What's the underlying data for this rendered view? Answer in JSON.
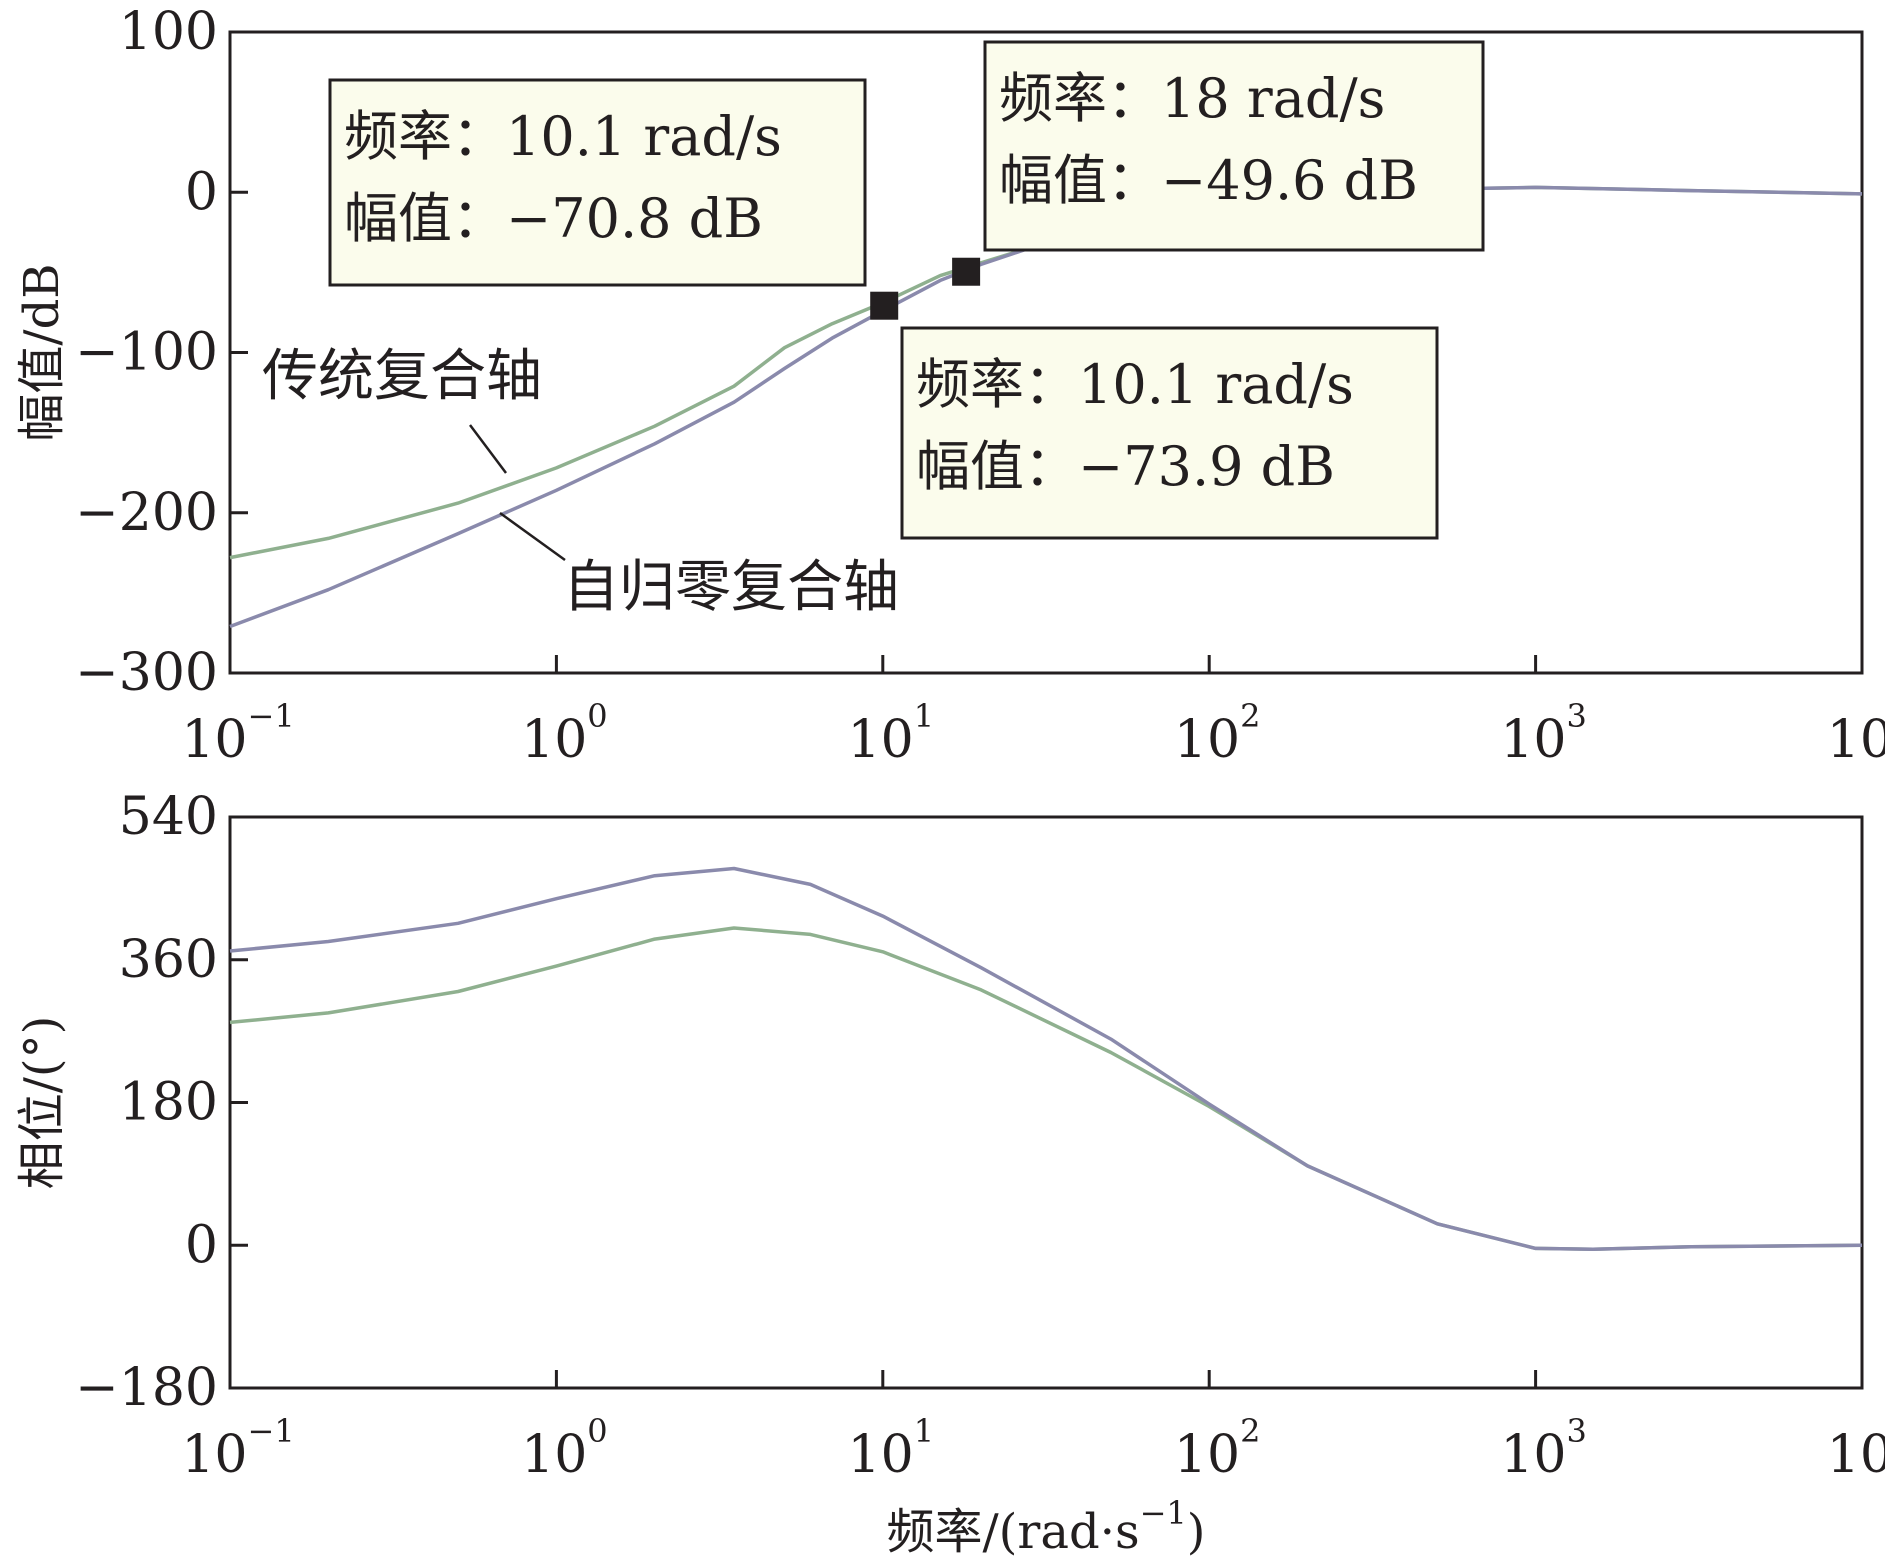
{
  "chart_data": [
    {
      "type": "line",
      "panel": "magnitude",
      "ylabel": "幅值/dB",
      "xscale": "log",
      "xlim": [
        0.1,
        10000
      ],
      "ylim": [
        -300,
        100
      ],
      "yticks": [
        100,
        0,
        -100,
        -200,
        -300
      ],
      "ytick_labels": [
        "100",
        "0",
        "−100",
        "−200",
        "−300"
      ],
      "xtick_labels": [
        {
          "base": "10",
          "exp": "−1"
        },
        {
          "base": "10",
          "exp": "0"
        },
        {
          "base": "10",
          "exp": "1"
        },
        {
          "base": "10",
          "exp": "2"
        },
        {
          "base": "10",
          "exp": "3"
        },
        {
          "base": "10",
          "exp": "4"
        }
      ],
      "series": [
        {
          "name": "传统复合轴",
          "color": "#8fb08f",
          "x": [
            0.1,
            0.2,
            0.5,
            1,
            2,
            3.5,
            5,
            7,
            10,
            15,
            20,
            30,
            50,
            100,
            200,
            500,
            1000,
            3000,
            10000
          ],
          "y": [
            -228,
            -216,
            -194,
            -172,
            -146,
            -121,
            -97,
            -82,
            -69,
            -52,
            -44,
            -33,
            -22,
            -11,
            -4,
            2,
            3,
            1,
            -1
          ]
        },
        {
          "name": "自归零复合轴",
          "color": "#8a8aac",
          "x": [
            0.1,
            0.2,
            0.5,
            1,
            2,
            3.5,
            5,
            7,
            10,
            15,
            20,
            30,
            50,
            100,
            200,
            500,
            1000,
            3000,
            10000
          ],
          "y": [
            -271,
            -248,
            -213,
            -186,
            -157,
            -131,
            -110,
            -91,
            -74,
            -55,
            -45,
            -33,
            -22,
            -11,
            -4,
            2,
            3,
            1,
            -1
          ]
        }
      ],
      "annotations": [
        {
          "line1": "频率：10.1 rad/s",
          "line2": "幅值：−70.8 dB",
          "x": 10.1,
          "y": -70.8
        },
        {
          "line1": "频率：18 rad/s",
          "line2": "幅值：−49.6 dB",
          "x": 18,
          "y": -49.6
        },
        {
          "line1": "频率：10.1 rad/s",
          "line2": "幅值：−73.9 dB",
          "x": 10.1,
          "y": -73.9
        }
      ]
    },
    {
      "type": "line",
      "panel": "phase",
      "xlabel": "频率/(rad·s",
      "xlabel_exp": "−1",
      "xlabel_close": ")",
      "ylabel": "相位/(°)",
      "xscale": "log",
      "xlim": [
        0.1,
        10000
      ],
      "ylim": [
        -180,
        540
      ],
      "yticks": [
        540,
        360,
        180,
        0,
        -180
      ],
      "ytick_labels": [
        "540",
        "360",
        "180",
        "0",
        "−180"
      ],
      "xtick_labels": [
        {
          "base": "10",
          "exp": "−1"
        },
        {
          "base": "10",
          "exp": "0"
        },
        {
          "base": "10",
          "exp": "1"
        },
        {
          "base": "10",
          "exp": "2"
        },
        {
          "base": "10",
          "exp": "3"
        },
        {
          "base": "10",
          "exp": "4"
        }
      ],
      "series": [
        {
          "name": "传统复合轴",
          "color": "#8fb08f",
          "x": [
            0.1,
            0.2,
            0.5,
            1,
            2,
            3.5,
            6,
            10,
            20,
            50,
            100,
            200,
            500,
            1000,
            1500,
            3000,
            10000
          ],
          "y": [
            281,
            293,
            320,
            352,
            386,
            400,
            392,
            370,
            322,
            243,
            175,
            100,
            27,
            -4,
            -5,
            -2,
            0
          ]
        },
        {
          "name": "自归零复合轴",
          "color": "#8a8aac",
          "x": [
            0.1,
            0.2,
            0.5,
            1,
            2,
            3.5,
            6,
            10,
            20,
            50,
            100,
            200,
            500,
            1000,
            1500,
            3000,
            10000
          ],
          "y": [
            371,
            383,
            406,
            437,
            466,
            475,
            455,
            415,
            350,
            260,
            178,
            100,
            27,
            -4,
            -5,
            -2,
            0
          ]
        }
      ]
    }
  ]
}
